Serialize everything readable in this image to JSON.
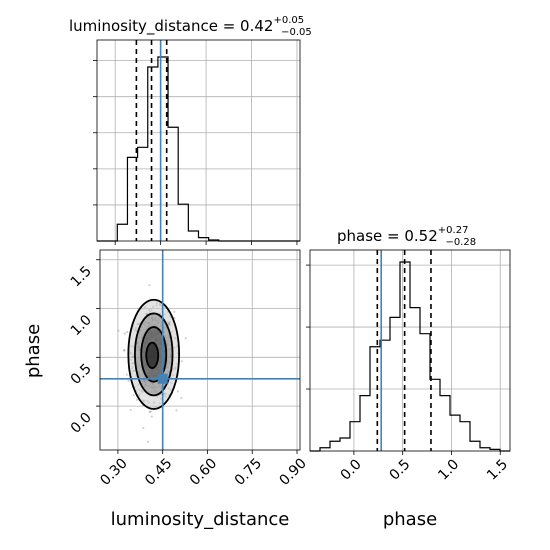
{
  "chart_data": {
    "type": "corner",
    "parameters": [
      "luminosity_distance",
      "phase"
    ],
    "titles": {
      "luminosity_distance": {
        "label": "luminosity_distance = ",
        "median": "0.42",
        "plus": "+0.05",
        "minus": "−0.05"
      },
      "phase": {
        "label": "phase = ",
        "median": "0.52",
        "plus": "+0.27",
        "minus": "−0.28"
      }
    },
    "xlabel_left": "luminosity_distance",
    "xlabel_right": "phase",
    "ylabel": "phase",
    "truth": {
      "luminosity_distance": 0.45,
      "phase": 0.28
    },
    "quantiles": {
      "luminosity_distance": [
        0.37,
        0.42,
        0.47
      ],
      "phase": [
        0.24,
        0.52,
        0.79
      ]
    },
    "ranges": {
      "luminosity_distance": [
        0.24,
        0.91
      ],
      "phase": [
        -0.45,
        1.6
      ]
    },
    "ticks": {
      "luminosity_distance": [
        "0.30",
        "0.45",
        "0.60",
        "0.75",
        "0.90"
      ],
      "phase_y": [
        "0.0",
        "0.5",
        "1.0",
        "1.5"
      ],
      "phase_x": [
        "0.0",
        "0.5",
        "1.0",
        "1.5"
      ]
    },
    "hist_luminosity_distance": {
      "bin_start": 0.24,
      "bin_width": 0.0335,
      "counts": [
        0,
        0,
        5,
        25,
        28,
        52,
        55,
        34,
        11,
        3,
        1,
        0.3,
        0,
        0,
        0,
        0,
        0,
        0,
        0,
        0
      ]
    },
    "hist_phase": {
      "bin_start": -0.45,
      "bin_width": 0.1025,
      "counts": [
        0,
        1,
        3,
        4,
        9,
        17,
        32,
        34,
        41,
        58,
        44,
        36,
        22,
        17,
        11,
        9,
        3,
        1,
        0.5,
        0
      ]
    },
    "contours": [
      {
        "cx": 0.415,
        "cy": 0.52,
        "rx": 0.02,
        "ry": 0.13
      },
      {
        "cx": 0.42,
        "cy": 0.53,
        "rx": 0.042,
        "ry": 0.28
      },
      {
        "cx": 0.42,
        "cy": 0.53,
        "rx": 0.063,
        "ry": 0.42
      },
      {
        "cx": 0.42,
        "cy": 0.53,
        "rx": 0.085,
        "ry": 0.56
      }
    ],
    "grid": true
  }
}
